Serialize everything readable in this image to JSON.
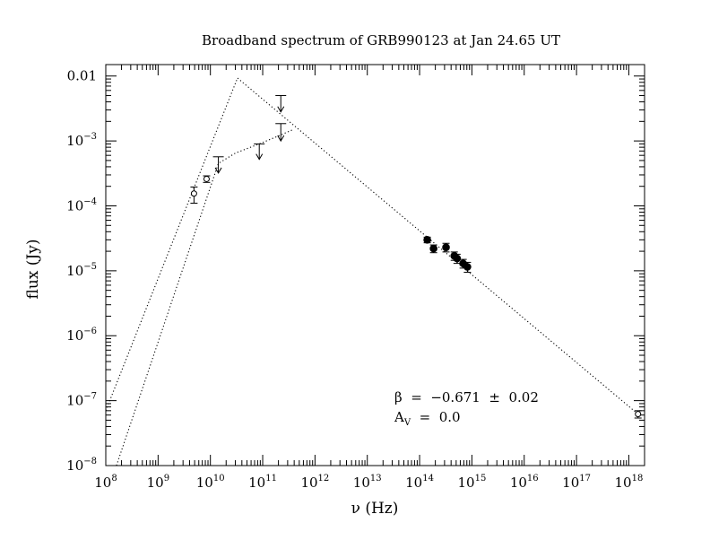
{
  "chart_data": {
    "type": "scatter",
    "title": "Broadband spectrum of GRB990123 at Jan 24.65 UT",
    "xlabel": "ν  (Hz)",
    "ylabel": "flux  (Jy)",
    "xscale": "log",
    "yscale": "log",
    "xlim": [
      100000000.0,
      2e+18
    ],
    "ylim": [
      1e-08,
      0.015
    ],
    "x_ticks": [
      {
        "base": "10",
        "exp": "8"
      },
      {
        "base": "10",
        "exp": "9"
      },
      {
        "base": "10",
        "exp": "10"
      },
      {
        "base": "10",
        "exp": "11"
      },
      {
        "base": "10",
        "exp": "12"
      },
      {
        "base": "10",
        "exp": "13"
      },
      {
        "base": "10",
        "exp": "14"
      },
      {
        "base": "10",
        "exp": "15"
      },
      {
        "base": "10",
        "exp": "16"
      },
      {
        "base": "10",
        "exp": "17"
      },
      {
        "base": "10",
        "exp": "18"
      }
    ],
    "y_ticks": [
      {
        "text": "0.01"
      },
      {
        "base": "10",
        "exp": "−3"
      },
      {
        "base": "10",
        "exp": "−4"
      },
      {
        "base": "10",
        "exp": "−5"
      },
      {
        "base": "10",
        "exp": "−6"
      },
      {
        "base": "10",
        "exp": "−7"
      },
      {
        "base": "10",
        "exp": "−8"
      }
    ],
    "annotations": {
      "beta": "β  =  −0.671  ±  0.02",
      "av_main": "A",
      "av_sub": "V",
      "av_value": "  =  0.0"
    },
    "series": [
      {
        "marker": "open-circle",
        "points": [
          {
            "x": 4860000000.0,
            "y": 0.000155,
            "yerr_lo": 4.5e-05,
            "yerr_hi": 4e-05
          },
          {
            "x": 8460000000.0,
            "y": 0.00026,
            "yerr_lo": 3e-05,
            "yerr_hi": 3e-05
          },
          {
            "x": 1.5e+18,
            "y": 6.2e-08,
            "yerr_lo": 8e-09,
            "yerr_hi": 8e-09
          }
        ]
      },
      {
        "marker": "filled-circle",
        "points": [
          {
            "x": 140000000000000.0,
            "y": 3e-05,
            "yerr_lo": 3e-06,
            "yerr_hi": 3e-06
          },
          {
            "x": 185000000000000.0,
            "y": 2.2e-05,
            "yerr_lo": 3e-06,
            "yerr_hi": 3e-06
          },
          {
            "x": 320000000000000.0,
            "y": 2.3e-05,
            "yerr_lo": 3.5e-06,
            "yerr_hi": 3.5e-06
          },
          {
            "x": 460000000000000.0,
            "y": 1.7e-05,
            "yerr_lo": 2.5e-06,
            "yerr_hi": 2.5e-06
          },
          {
            "x": 520000000000000.0,
            "y": 1.55e-05,
            "yerr_lo": 2.5e-06,
            "yerr_hi": 2.5e-06
          },
          {
            "x": 680000000000000.0,
            "y": 1.3e-05,
            "yerr_lo": 2e-06,
            "yerr_hi": 2e-06
          },
          {
            "x": 820000000000000.0,
            "y": 1.15e-05,
            "yerr_lo": 2e-06,
            "yerr_hi": 2e-06
          }
        ]
      },
      {
        "marker": "upper-limit",
        "points": [
          {
            "x": 14200000000.0,
            "y": 0.00057,
            "y_arrow": 0.00032
          },
          {
            "x": 86000000000.0,
            "y": 0.0009,
            "y_arrow": 0.00052
          },
          {
            "x": 222000000000.0,
            "y": 0.005,
            "y_arrow": 0.0028
          },
          {
            "x": 222000000000.0,
            "y": 0.00185,
            "y_arrow": 0.001
          }
        ]
      }
    ],
    "models": [
      {
        "style": "dotted",
        "points": [
          [
            100000000.0,
            7e-08
          ],
          [
            33000000000.0,
            0.0093
          ],
          [
            1.5e+18,
            6.2e-08
          ]
        ]
      },
      {
        "style": "dotted",
        "points": [
          [
            160000000.0,
            1e-08
          ],
          [
            14200000000.0,
            0.00045
          ],
          [
            30000000000.0,
            0.00065
          ],
          [
            86000000000.0,
            0.0009
          ],
          [
            230000000000.0,
            0.00125
          ],
          [
            380000000000.0,
            0.0015
          ]
        ]
      }
    ]
  }
}
